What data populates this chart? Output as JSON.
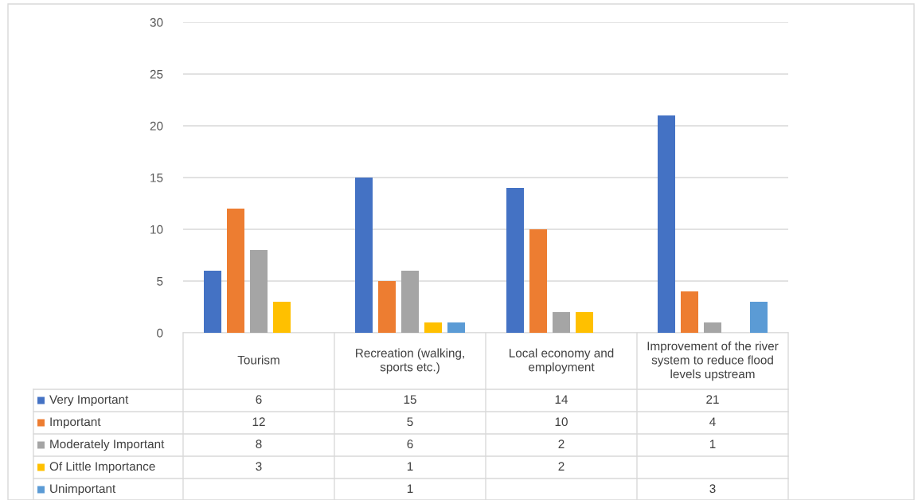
{
  "chart_data": {
    "type": "bar",
    "categories": [
      "Tourism",
      "Recreation (walking, sports etc.)",
      "Local economy and employment",
      "Improvement of the river system to reduce flood levels upstream"
    ],
    "series": [
      {
        "name": "Very Important",
        "color": "#4472c4",
        "values": [
          6,
          15,
          14,
          21
        ]
      },
      {
        "name": "Important",
        "color": "#ed7d31",
        "values": [
          12,
          5,
          10,
          4
        ]
      },
      {
        "name": "Moderately Important",
        "color": "#a5a5a5",
        "values": [
          8,
          6,
          2,
          1
        ]
      },
      {
        "name": "Of Little Importance",
        "color": "#ffc000",
        "values": [
          3,
          1,
          2,
          null
        ]
      },
      {
        "name": "Unimportant",
        "color": "#5b9bd5",
        "values": [
          null,
          1,
          null,
          3
        ]
      }
    ],
    "ylim": [
      0,
      30
    ],
    "yticks": [
      0,
      5,
      10,
      15,
      20,
      25,
      30
    ],
    "grid": "y",
    "legend": "bottom",
    "data_labels": true
  }
}
